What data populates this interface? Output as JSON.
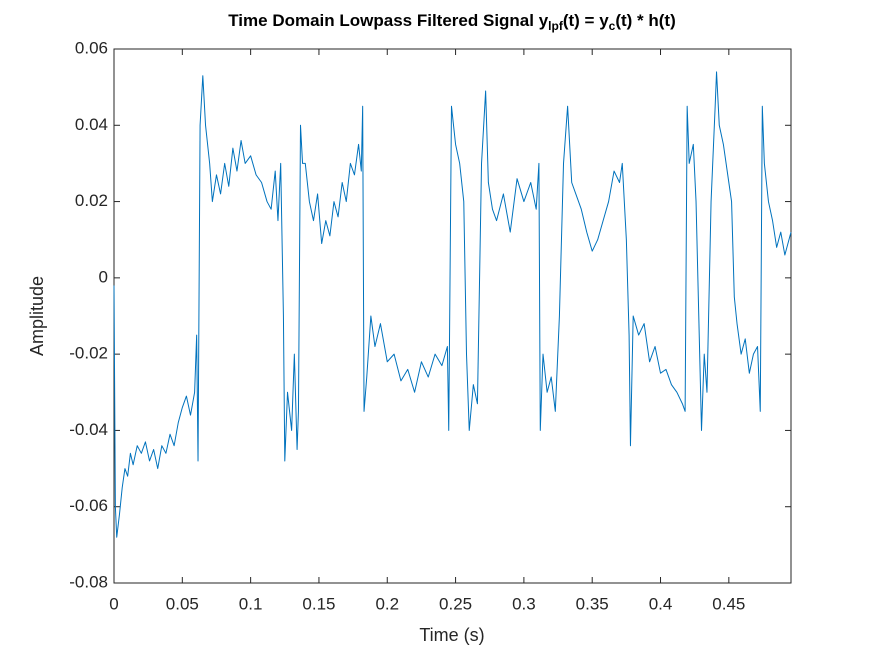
{
  "chart_data": {
    "type": "line",
    "title_parts": [
      "Time Domain Lowpass Filtered Signal y",
      "lpf",
      "(t) = y",
      "c",
      "(t) * h(t)"
    ],
    "x_label": "Time (s)",
    "y_label": "Amplitude",
    "xlim": [
      0,
      0.4955
    ],
    "ylim": [
      -0.08,
      0.06
    ],
    "xticks": [
      0,
      0.05,
      0.1,
      0.15,
      0.2,
      0.25,
      0.3,
      0.35,
      0.4,
      0.45
    ],
    "yticks": [
      -0.08,
      -0.06,
      -0.04,
      -0.02,
      0,
      0.02,
      0.04,
      0.06
    ],
    "series": [
      {
        "color": "#0072bd",
        "x": [
          0,
          0.001,
          0.002,
          0.004,
          0.006,
          0.008,
          0.01,
          0.012,
          0.014,
          0.017,
          0.02,
          0.023,
          0.026,
          0.029,
          0.032,
          0.035,
          0.038,
          0.041,
          0.044,
          0.047,
          0.05,
          0.053,
          0.056,
          0.059,
          0.0605,
          0.0615,
          0.063,
          0.065,
          0.067,
          0.07,
          0.072,
          0.075,
          0.078,
          0.081,
          0.084,
          0.087,
          0.09,
          0.093,
          0.096,
          0.1,
          0.104,
          0.108,
          0.112,
          0.115,
          0.118,
          0.12,
          0.122,
          0.124,
          0.125,
          0.127,
          0.13,
          0.132,
          0.134,
          0.135,
          0.1365,
          0.138,
          0.14,
          0.143,
          0.146,
          0.149,
          0.152,
          0.155,
          0.158,
          0.161,
          0.164,
          0.167,
          0.17,
          0.173,
          0.176,
          0.179,
          0.181,
          0.182,
          0.183,
          0.185,
          0.188,
          0.191,
          0.195,
          0.2,
          0.205,
          0.21,
          0.215,
          0.22,
          0.225,
          0.23,
          0.235,
          0.24,
          0.244,
          0.245,
          0.247,
          0.25,
          0.253,
          0.256,
          0.258,
          0.26,
          0.263,
          0.266,
          0.269,
          0.272,
          0.274,
          0.277,
          0.28,
          0.285,
          0.29,
          0.295,
          0.3,
          0.305,
          0.309,
          0.311,
          0.312,
          0.314,
          0.317,
          0.32,
          0.323,
          0.326,
          0.329,
          0.332,
          0.335,
          0.338,
          0.342,
          0.346,
          0.35,
          0.354,
          0.358,
          0.362,
          0.366,
          0.37,
          0.372,
          0.375,
          0.377,
          0.378,
          0.38,
          0.384,
          0.388,
          0.392,
          0.396,
          0.4,
          0.404,
          0.408,
          0.412,
          0.416,
          0.418,
          0.4195,
          0.421,
          0.424,
          0.426,
          0.428,
          0.43,
          0.432,
          0.434,
          0.437,
          0.44,
          0.441,
          0.443,
          0.446,
          0.45,
          0.452,
          0.454,
          0.456,
          0.459,
          0.462,
          0.465,
          0.468,
          0.471,
          0.473,
          0.4745,
          0.476,
          0.479,
          0.482,
          0.485,
          0.488,
          0.491,
          0.4955
        ],
        "values": [
          -0.002,
          -0.06,
          -0.068,
          -0.062,
          -0.055,
          -0.05,
          -0.052,
          -0.046,
          -0.049,
          -0.044,
          -0.046,
          -0.043,
          -0.048,
          -0.045,
          -0.05,
          -0.044,
          -0.046,
          -0.041,
          -0.044,
          -0.038,
          -0.034,
          -0.031,
          -0.036,
          -0.03,
          -0.015,
          -0.048,
          0.04,
          0.053,
          0.04,
          0.03,
          0.02,
          0.027,
          0.022,
          0.03,
          0.024,
          0.034,
          0.028,
          0.036,
          0.03,
          0.032,
          0.027,
          0.025,
          0.02,
          0.018,
          0.028,
          0.015,
          0.03,
          -0.01,
          -0.048,
          -0.03,
          -0.04,
          -0.02,
          -0.045,
          -0.035,
          0.04,
          0.03,
          0.03,
          0.02,
          0.015,
          0.022,
          0.009,
          0.015,
          0.011,
          0.02,
          0.016,
          0.025,
          0.02,
          0.03,
          0.027,
          0.035,
          0.028,
          0.045,
          -0.035,
          -0.026,
          -0.01,
          -0.018,
          -0.012,
          -0.022,
          -0.02,
          -0.027,
          -0.024,
          -0.03,
          -0.022,
          -0.026,
          -0.02,
          -0.023,
          -0.018,
          -0.04,
          0.045,
          0.035,
          0.03,
          0.02,
          -0.02,
          -0.04,
          -0.028,
          -0.033,
          0.03,
          0.049,
          0.025,
          0.018,
          0.015,
          0.022,
          0.012,
          0.026,
          0.02,
          0.025,
          0.018,
          0.03,
          -0.04,
          -0.02,
          -0.03,
          -0.026,
          -0.035,
          -0.01,
          0.03,
          0.045,
          0.025,
          0.022,
          0.018,
          0.012,
          0.007,
          0.01,
          0.015,
          0.02,
          0.028,
          0.025,
          0.03,
          0.01,
          -0.015,
          -0.044,
          -0.01,
          -0.015,
          -0.012,
          -0.022,
          -0.018,
          -0.025,
          -0.024,
          -0.028,
          -0.03,
          -0.033,
          -0.035,
          0.045,
          0.03,
          0.035,
          0.02,
          -0.01,
          -0.04,
          -0.02,
          -0.03,
          0.02,
          0.045,
          0.054,
          0.04,
          0.035,
          0.025,
          0.02,
          -0.005,
          -0.012,
          -0.02,
          -0.016,
          -0.025,
          -0.02,
          -0.018,
          -0.035,
          0.045,
          0.03,
          0.02,
          0.015,
          0.008,
          0.012,
          0.006,
          0.012
        ]
      }
    ]
  }
}
